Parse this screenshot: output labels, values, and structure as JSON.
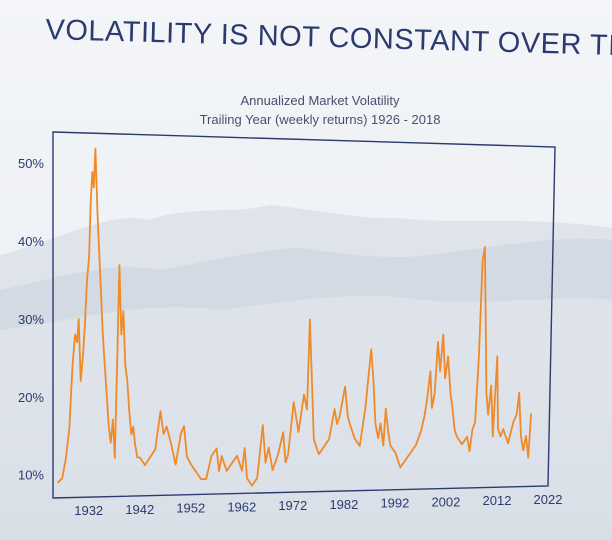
{
  "title": "VOLATILITY IS NOT CONSTANT OVER TIME",
  "colors": {
    "title": "#2b3b6e",
    "line": "#ef8a2a",
    "frame": "#2b3b6e",
    "mountains_light": "#d9dfe7",
    "mountains_mid": "#c9d1dc"
  },
  "chart_data": {
    "type": "line",
    "title": "Annualized Market Volatility",
    "subtitle": "Trailing Year (weekly returns) 1926 - 2018",
    "xlabel": "",
    "ylabel": "",
    "xlim": [
      1925,
      2022
    ],
    "ylim": [
      7,
      54
    ],
    "x_ticks": [
      1932,
      1942,
      1952,
      1962,
      1972,
      1982,
      1992,
      2002,
      2012,
      2022
    ],
    "x_tick_labels": [
      "1932",
      "1942",
      "1952",
      "1962",
      "1972",
      "1982",
      "1992",
      "2002",
      "2012",
      "2022"
    ],
    "y_ticks": [
      10,
      20,
      30,
      40,
      50
    ],
    "y_tick_labels": [
      "10%",
      "20%",
      "30%",
      "40%",
      "50%"
    ],
    "grid": false,
    "legend": "none",
    "series": [
      {
        "x": [
          1926.0,
          1926.8,
          1927.5,
          1928.2,
          1928.8,
          1929.3,
          1929.7,
          1930.0,
          1930.4,
          1930.8,
          1931.2,
          1931.6,
          1932.0,
          1932.3,
          1932.6,
          1932.9,
          1933.2,
          1933.6,
          1934.0,
          1934.3,
          1934.7,
          1935.1,
          1935.5,
          1935.9,
          1936.3,
          1936.7,
          1937.1,
          1937.5,
          1937.9,
          1938.3,
          1938.7,
          1939.1,
          1939.5,
          1939.9,
          1940.3,
          1940.7,
          1941.0,
          1941.5,
          1942.0,
          1943.0,
          1944.0,
          1945.0,
          1946.0,
          1946.6,
          1947.2,
          1948.0,
          1949.0,
          1950.0,
          1950.6,
          1951.2,
          1952.0,
          1953.0,
          1954.0,
          1955.0,
          1956.0,
          1957.0,
          1957.5,
          1958.0,
          1959.0,
          1960.0,
          1961.0,
          1962.0,
          1962.5,
          1963.0,
          1964.0,
          1965.0,
          1966.0,
          1966.6,
          1967.2,
          1968.0,
          1969.0,
          1970.0,
          1970.5,
          1971.0,
          1972.0,
          1973.0,
          1974.0,
          1974.6,
          1975.0,
          1975.5,
          1976.0,
          1977.0,
          1978.0,
          1979.0,
          1980.0,
          1980.5,
          1981.0,
          1982.0,
          1982.6,
          1983.0,
          1984.0,
          1985.0,
          1986.0,
          1987.0,
          1987.5,
          1988.0,
          1988.6,
          1989.0,
          1989.6,
          1990.0,
          1990.5,
          1991.0,
          1992.0,
          1993.0,
          1994.0,
          1995.0,
          1996.0,
          1997.0,
          1997.6,
          1998.0,
          1998.6,
          1999.0,
          1999.5,
          2000.0,
          2000.5,
          2001.0,
          2001.5,
          2002.0,
          2002.6,
          2003.0,
          2003.5,
          2004.0,
          2005.0,
          2006.0,
          2006.5,
          2007.0,
          2007.5,
          2008.0,
          2008.4,
          2008.8,
          2009.2,
          2009.6,
          2010.0,
          2010.5,
          2011.0,
          2011.6,
          2012.0,
          2012.5,
          2013.0,
          2014.0,
          2015.0,
          2015.6,
          2016.0,
          2016.5,
          2017.0,
          2017.5,
          2018.0,
          2018.4
        ],
        "y": [
          9,
          9.5,
          12,
          16,
          24,
          28,
          27,
          30,
          22,
          25,
          29,
          35,
          38,
          45,
          49,
          47,
          52,
          44,
          38,
          34,
          28,
          24,
          20,
          16,
          14,
          17,
          12,
          24,
          37,
          28,
          31,
          24,
          22,
          18,
          15,
          16,
          14,
          12,
          12,
          11,
          12,
          13,
          18,
          15,
          16,
          14,
          11,
          15,
          16,
          12,
          11,
          10,
          9,
          9,
          12,
          13,
          10,
          12,
          10,
          11,
          12,
          10,
          13,
          9,
          8,
          9,
          16,
          11,
          13,
          10,
          12,
          15,
          11,
          12,
          19,
          15,
          20,
          18,
          30,
          22,
          14,
          12,
          13,
          14,
          18,
          16,
          17,
          21,
          17,
          16,
          14,
          13,
          18,
          26,
          22,
          16,
          14,
          16,
          13,
          18,
          15,
          13,
          12,
          10,
          11,
          12,
          13,
          15,
          17,
          19,
          23,
          18,
          20,
          27,
          23,
          28,
          22,
          25,
          20,
          18,
          15,
          14,
          13,
          14,
          12,
          15,
          16,
          25,
          38,
          40,
          30,
          20,
          17,
          21,
          14,
          25,
          15,
          14,
          15,
          13,
          16,
          17,
          20,
          14,
          12,
          14,
          11,
          17
        ]
      }
    ]
  }
}
